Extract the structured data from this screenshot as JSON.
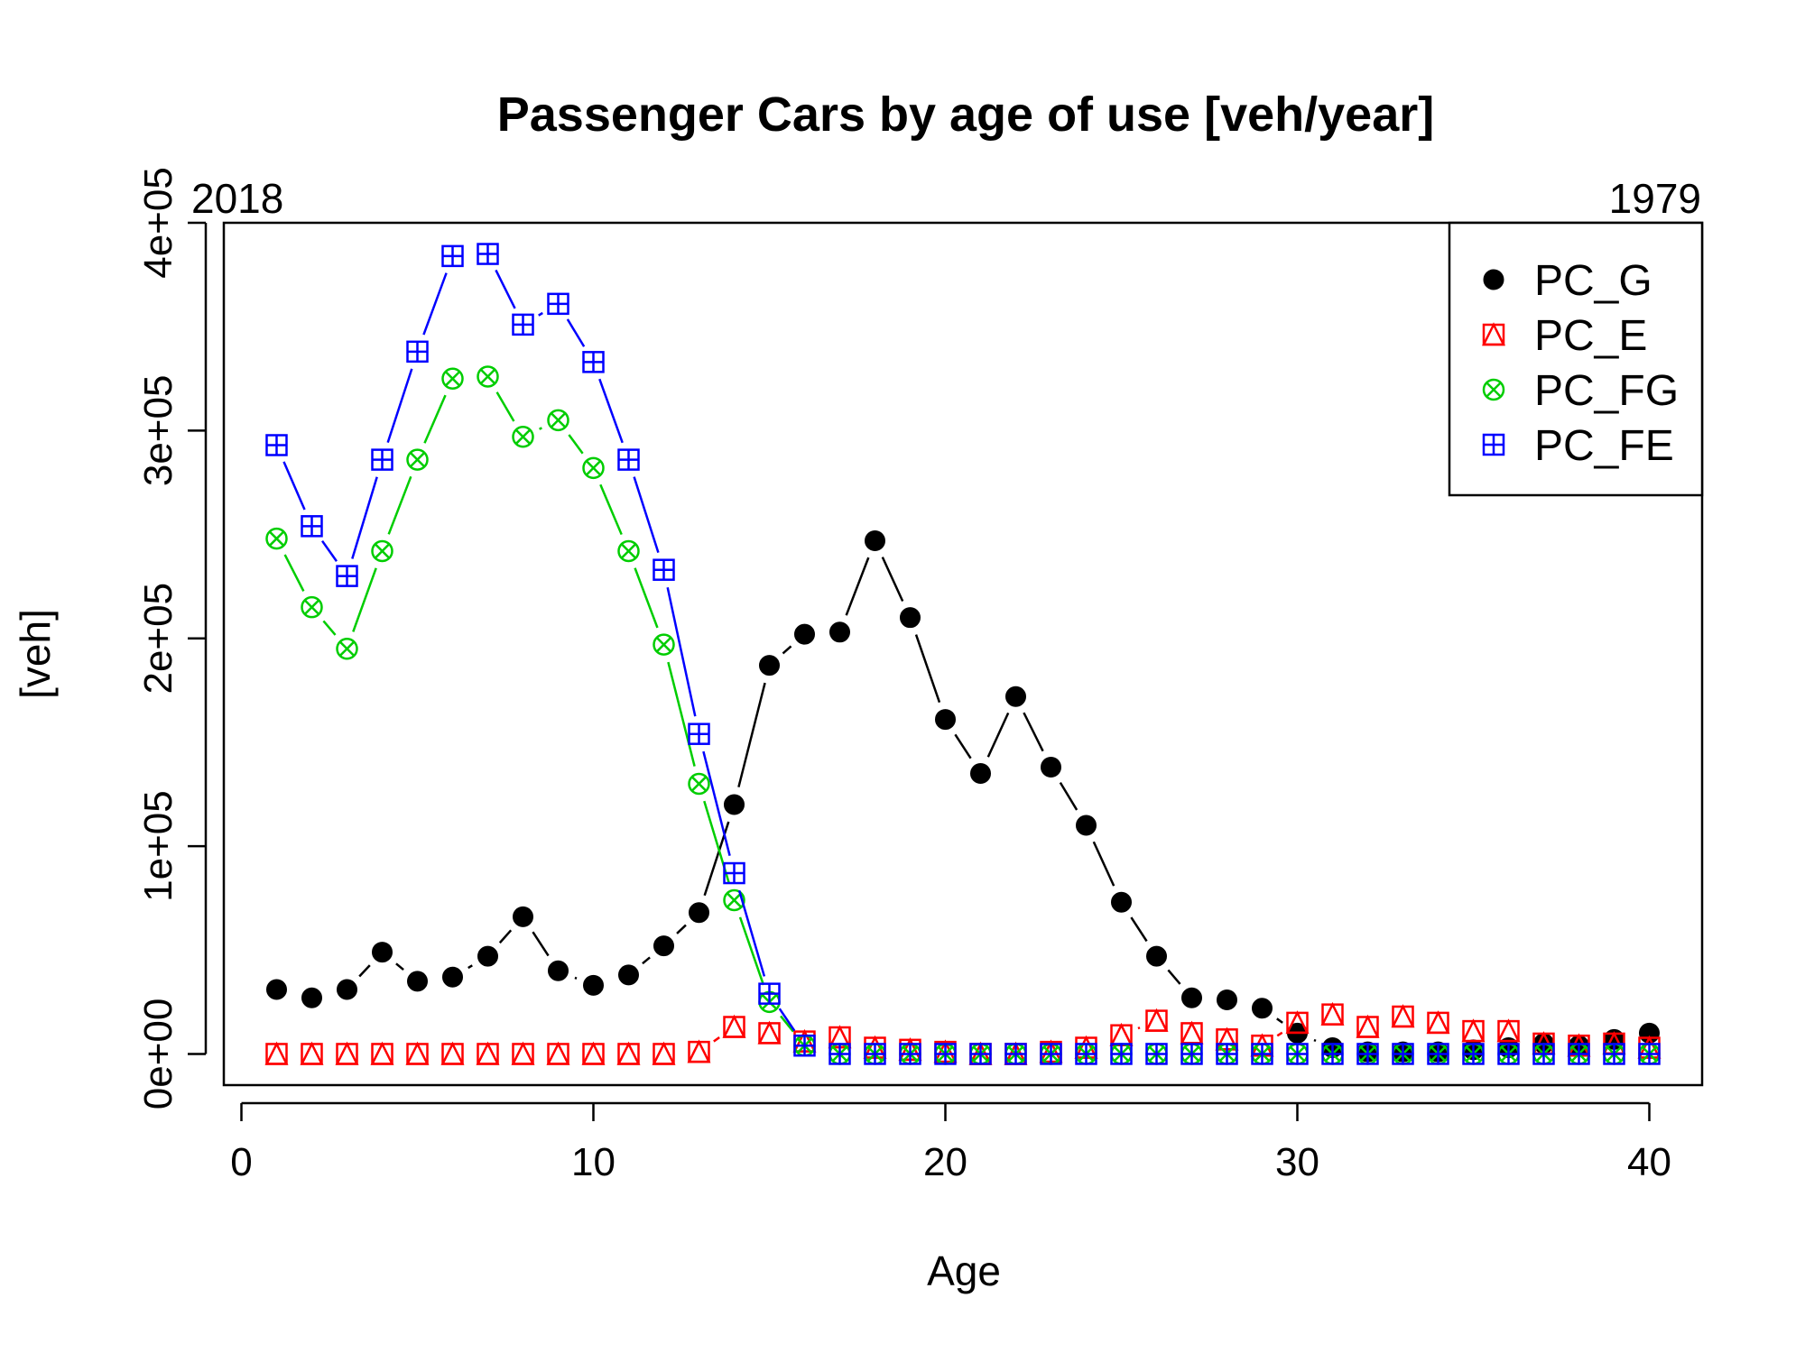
{
  "chart_data": {
    "type": "scatter",
    "title": "Passenger Cars by age of use [veh/year]",
    "xlabel": "Age",
    "ylabel": "[veh]",
    "corner_left": "2018",
    "corner_right": "1979",
    "xlim": [
      -0.5,
      41.5
    ],
    "ylim": [
      -15000,
      400000
    ],
    "xticks": [
      0,
      10,
      20,
      30,
      40
    ],
    "xtick_labels": [
      "0",
      "10",
      "20",
      "30",
      "40"
    ],
    "yticks": [
      0,
      100000,
      200000,
      300000,
      400000
    ],
    "ytick_labels": [
      "0e+00",
      "1e+05",
      "2e+05",
      "3e+05",
      "4e+05"
    ],
    "legend_position": "top-right",
    "x": [
      1,
      2,
      3,
      4,
      5,
      6,
      7,
      8,
      9,
      10,
      11,
      12,
      13,
      14,
      15,
      16,
      17,
      18,
      19,
      20,
      21,
      22,
      23,
      24,
      25,
      26,
      27,
      28,
      29,
      30,
      31,
      32,
      33,
      34,
      35,
      36,
      37,
      38,
      39,
      40
    ],
    "series": [
      {
        "name": "PC_G",
        "color": "#000000",
        "marker": "filled-circle",
        "values": [
          31000,
          27000,
          31000,
          49000,
          35000,
          37000,
          47000,
          66000,
          40000,
          33000,
          38000,
          52000,
          68000,
          120000,
          187000,
          202000,
          203000,
          247000,
          210000,
          161000,
          135000,
          172000,
          138000,
          110000,
          73000,
          47000,
          27000,
          26000,
          22000,
          10000,
          3000,
          1000,
          1000,
          1000,
          2000,
          3000,
          5000,
          4000,
          7000,
          10000
        ]
      },
      {
        "name": "PC_E",
        "color": "#ff0000",
        "marker": "square-triangle",
        "values": [
          0,
          0,
          0,
          0,
          0,
          0,
          0,
          0,
          0,
          0,
          0,
          0,
          1000,
          13000,
          10000,
          6000,
          8000,
          3000,
          2000,
          1000,
          0,
          0,
          1000,
          3000,
          9000,
          16000,
          10000,
          7000,
          4000,
          15000,
          19000,
          13000,
          18000,
          15000,
          11000,
          11000,
          5000,
          4000,
          5000,
          3000
        ]
      },
      {
        "name": "PC_FG",
        "color": "#00cd00",
        "marker": "circle-x",
        "values": [
          248000,
          215000,
          195000,
          242000,
          286000,
          325000,
          326000,
          297000,
          305000,
          282000,
          242000,
          197000,
          130000,
          74000,
          25000,
          4000,
          0,
          0,
          0,
          0,
          0,
          0,
          0,
          0,
          0,
          0,
          0,
          0,
          0,
          0,
          0,
          0,
          0,
          0,
          0,
          0,
          0,
          0,
          0,
          0
        ]
      },
      {
        "name": "PC_FE",
        "color": "#0000ff",
        "marker": "square-plus",
        "values": [
          293000,
          254000,
          230000,
          286000,
          338000,
          384000,
          385000,
          351000,
          361000,
          333000,
          286000,
          233000,
          154000,
          87000,
          29000,
          4000,
          0,
          0,
          0,
          0,
          0,
          0,
          0,
          0,
          0,
          0,
          0,
          0,
          0,
          0,
          0,
          0,
          0,
          0,
          0,
          0,
          0,
          0,
          0,
          0
        ]
      }
    ]
  }
}
